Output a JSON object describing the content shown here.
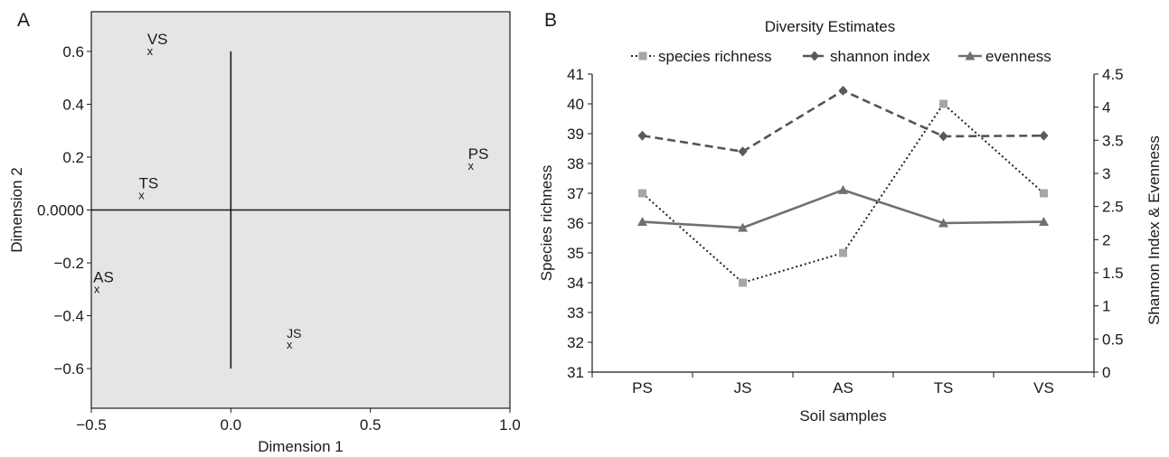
{
  "panels": {
    "a_label": "A",
    "b_label": "B"
  },
  "chart_data": [
    {
      "type": "scatter",
      "title": "",
      "xlabel": "Dimension 1",
      "ylabel": "Dimension 2",
      "xlim": [
        -0.5,
        1.0
      ],
      "ylim": [
        -0.75,
        0.75
      ],
      "xticks": [
        -0.5,
        0.0,
        0.5,
        1.0
      ],
      "xtick_labels": [
        "−0.5",
        "0.0",
        "0.5",
        "1.0"
      ],
      "yticks": [
        0.6,
        0.4,
        0.2,
        0.0,
        -0.2,
        -0.4,
        -0.6
      ],
      "ytick_labels": [
        "0.6",
        "0.4",
        "0.2",
        "0.0000",
        "−0.2",
        "−0.4",
        "−0.6"
      ],
      "background": "#e5e5e5",
      "points": [
        {
          "label": "VS",
          "x": -0.29,
          "y": 0.6
        },
        {
          "label": "PS",
          "x": 0.86,
          "y": 0.165
        },
        {
          "label": "TS",
          "x": -0.32,
          "y": 0.055
        },
        {
          "label": "AS",
          "x": -0.48,
          "y": -0.3
        },
        {
          "label": "JS",
          "x": 0.21,
          "y": -0.51
        }
      ]
    },
    {
      "type": "line",
      "title": "Diversity Estimates",
      "xlabel": "Soil samples",
      "ylabel": "Species richness",
      "y2label": "Shannon Index & Evenness",
      "categories": [
        "PS",
        "JS",
        "AS",
        "TS",
        "VS"
      ],
      "ylim": [
        31,
        41
      ],
      "yticks": [
        31,
        32,
        33,
        34,
        35,
        36,
        37,
        38,
        39,
        40,
        41
      ],
      "y2lim": [
        0,
        4.5
      ],
      "y2ticks": [
        "0",
        "0.5",
        "1",
        "1.5",
        "2",
        "2.5",
        "3",
        "3.5",
        "4",
        "4.5"
      ],
      "legend_position": "top",
      "series": [
        {
          "name": "species richness",
          "axis": "left",
          "values": [
            37,
            34,
            35,
            40,
            37
          ],
          "color": "#a6a6a6",
          "line_color": "#222222",
          "dash": "dotted",
          "marker": "square"
        },
        {
          "name": "shannon index",
          "axis": "right",
          "values": [
            3.57,
            3.33,
            4.25,
            3.56,
            3.57
          ],
          "color": "#595959",
          "line_color": "#555555",
          "dash": "dashed",
          "marker": "diamond"
        },
        {
          "name": "evenness",
          "axis": "right",
          "values": [
            2.27,
            2.18,
            2.75,
            2.25,
            2.27
          ],
          "color": "#707070",
          "line_color": "#707070",
          "dash": "solid",
          "marker": "triangle"
        }
      ]
    }
  ]
}
